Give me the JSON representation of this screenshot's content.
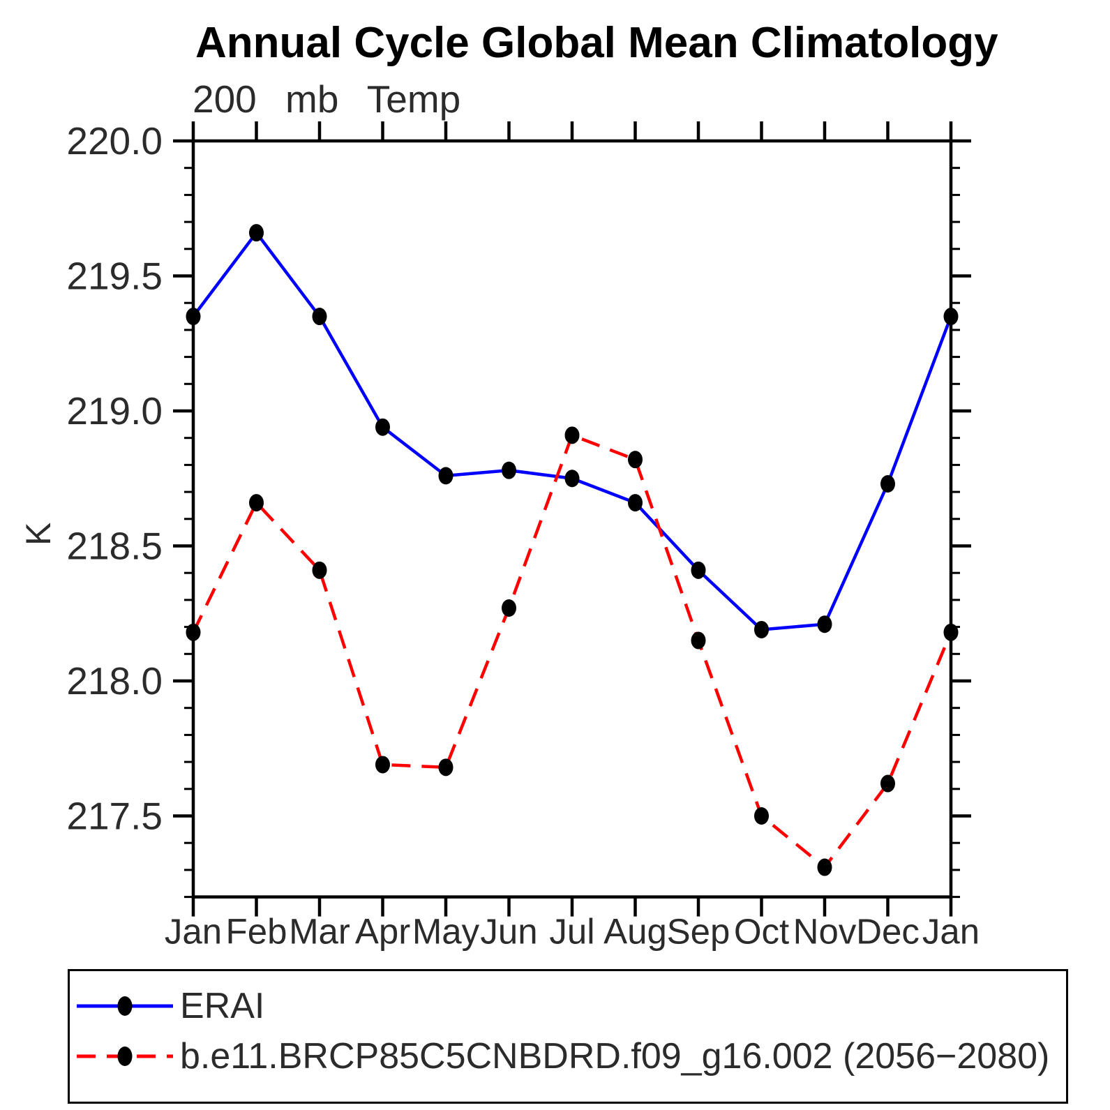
{
  "chart_data": {
    "type": "line",
    "title": "Annual Cycle Global Mean Climatology",
    "subtitle": "200 mb Temp",
    "ylabel": "K",
    "categories": [
      "Jan",
      "Feb",
      "Mar",
      "Apr",
      "May",
      "Jun",
      "Jul",
      "Aug",
      "Sep",
      "Oct",
      "Nov",
      "Dec",
      "Jan"
    ],
    "ylim": [
      217.2,
      220.0
    ],
    "ytick_major": [
      220.0,
      219.5,
      219.0,
      218.5,
      218.0,
      217.5
    ],
    "ytick_major_labels": [
      "220.0",
      "219.5",
      "219.0",
      "218.5",
      "218.0",
      "217.5"
    ],
    "ytick_minor_step": 0.1,
    "grid": false,
    "legend_position": "bottom",
    "series": [
      {
        "name": "ERAI",
        "color": "#0000ff",
        "line": "solid",
        "marker": "circle",
        "marker_color": "#000000",
        "values": [
          219.35,
          219.66,
          219.35,
          218.94,
          218.76,
          218.78,
          218.75,
          218.66,
          218.41,
          218.19,
          218.21,
          218.73,
          219.35
        ]
      },
      {
        "name": "b.e11.BRCP85C5CNBDRD.f09_g16.002 (2056−2080)",
        "color": "#ff0000",
        "line": "dashed",
        "marker": "circle",
        "marker_color": "#000000",
        "values": [
          218.18,
          218.66,
          218.41,
          217.69,
          217.68,
          218.27,
          218.91,
          218.82,
          218.15,
          217.5,
          217.31,
          217.62,
          218.18
        ]
      }
    ]
  }
}
